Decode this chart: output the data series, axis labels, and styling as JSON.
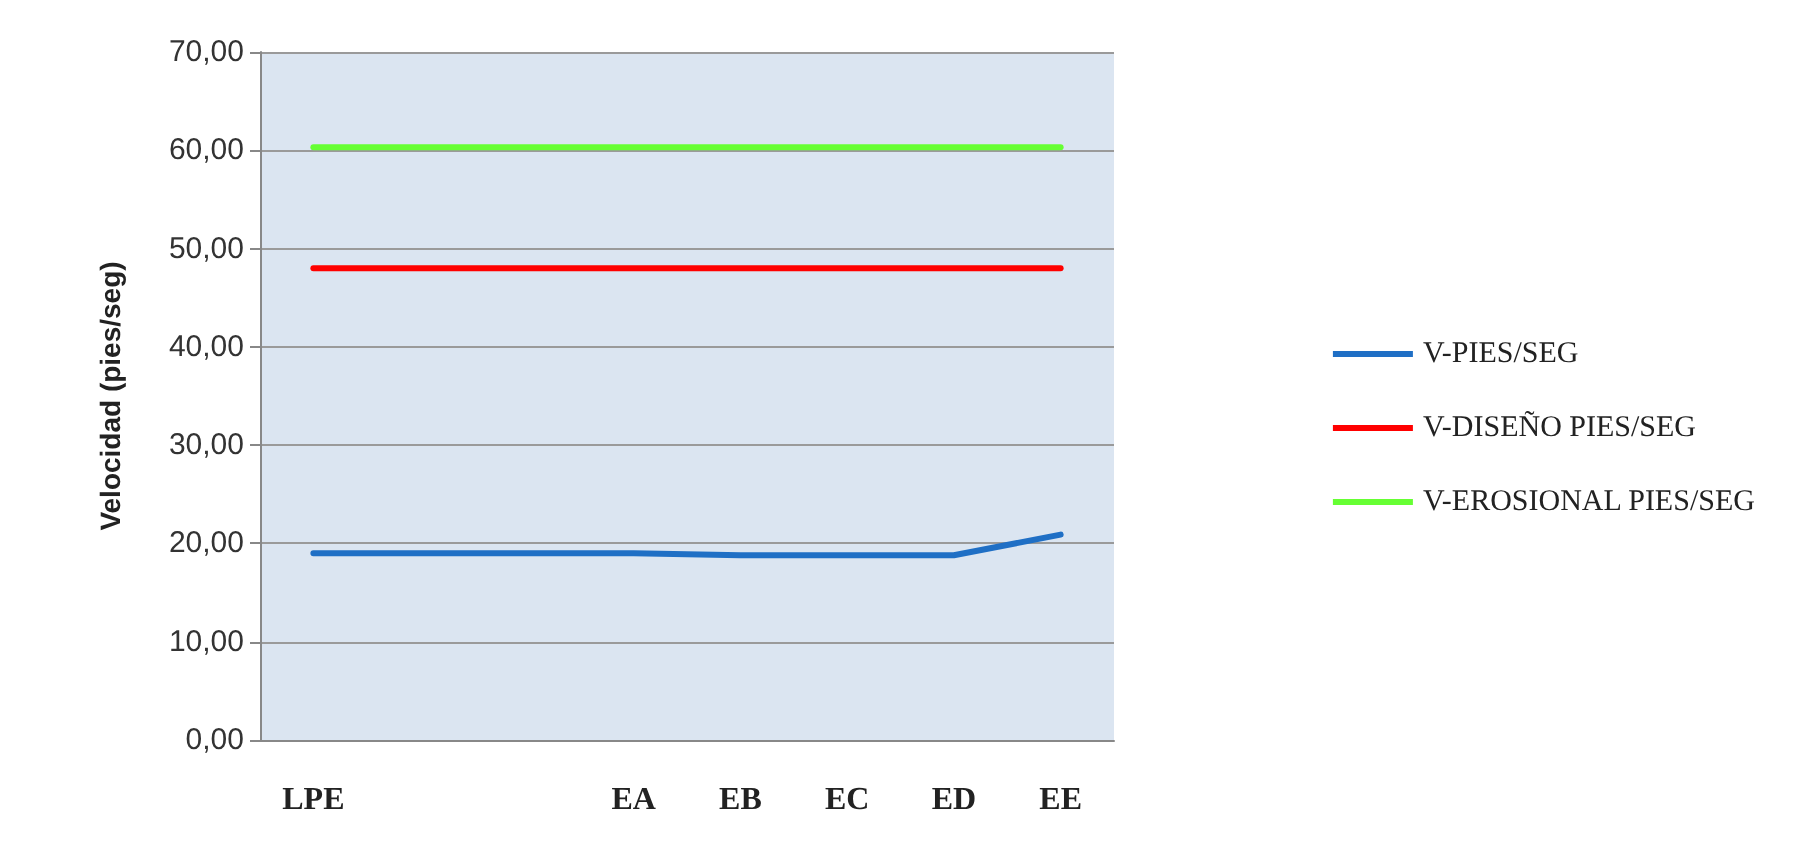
{
  "chart_data": {
    "type": "line",
    "ylabel": "Velocidad (pies/seg)",
    "categories": [
      "LPE",
      null,
      null,
      "EA",
      "EB",
      "EC",
      "ED",
      "EE"
    ],
    "series": [
      {
        "name": "V-PIES/SEG",
        "color": "#1f6fc5",
        "values": [
          19,
          19,
          19,
          19,
          18.8,
          18.8,
          18.8,
          20.9
        ]
      },
      {
        "name": "V-DISEÑO PIES/SEG",
        "color": "#ff0000",
        "values": [
          48,
          48,
          48,
          48,
          48,
          48,
          48,
          48
        ]
      },
      {
        "name": "V-EROSIONAL PIES/SEG",
        "color": "#66ff33",
        "values": [
          60.3,
          60.3,
          60.3,
          60.3,
          60.3,
          60.3,
          60.3,
          60.3
        ]
      }
    ],
    "ylim": [
      0,
      70
    ],
    "yticks": [
      {
        "value": 0,
        "label": "0,00"
      },
      {
        "value": 10,
        "label": "10,00"
      },
      {
        "value": 20,
        "label": "20,00"
      },
      {
        "value": 30,
        "label": "30,00"
      },
      {
        "value": 40,
        "label": "40,00"
      },
      {
        "value": 50,
        "label": "50,00"
      },
      {
        "value": 60,
        "label": "60,00"
      },
      {
        "value": 70,
        "label": "70,00"
      }
    ],
    "grid": "y",
    "legend": "right",
    "marker": "none",
    "line_style": "solid"
  }
}
